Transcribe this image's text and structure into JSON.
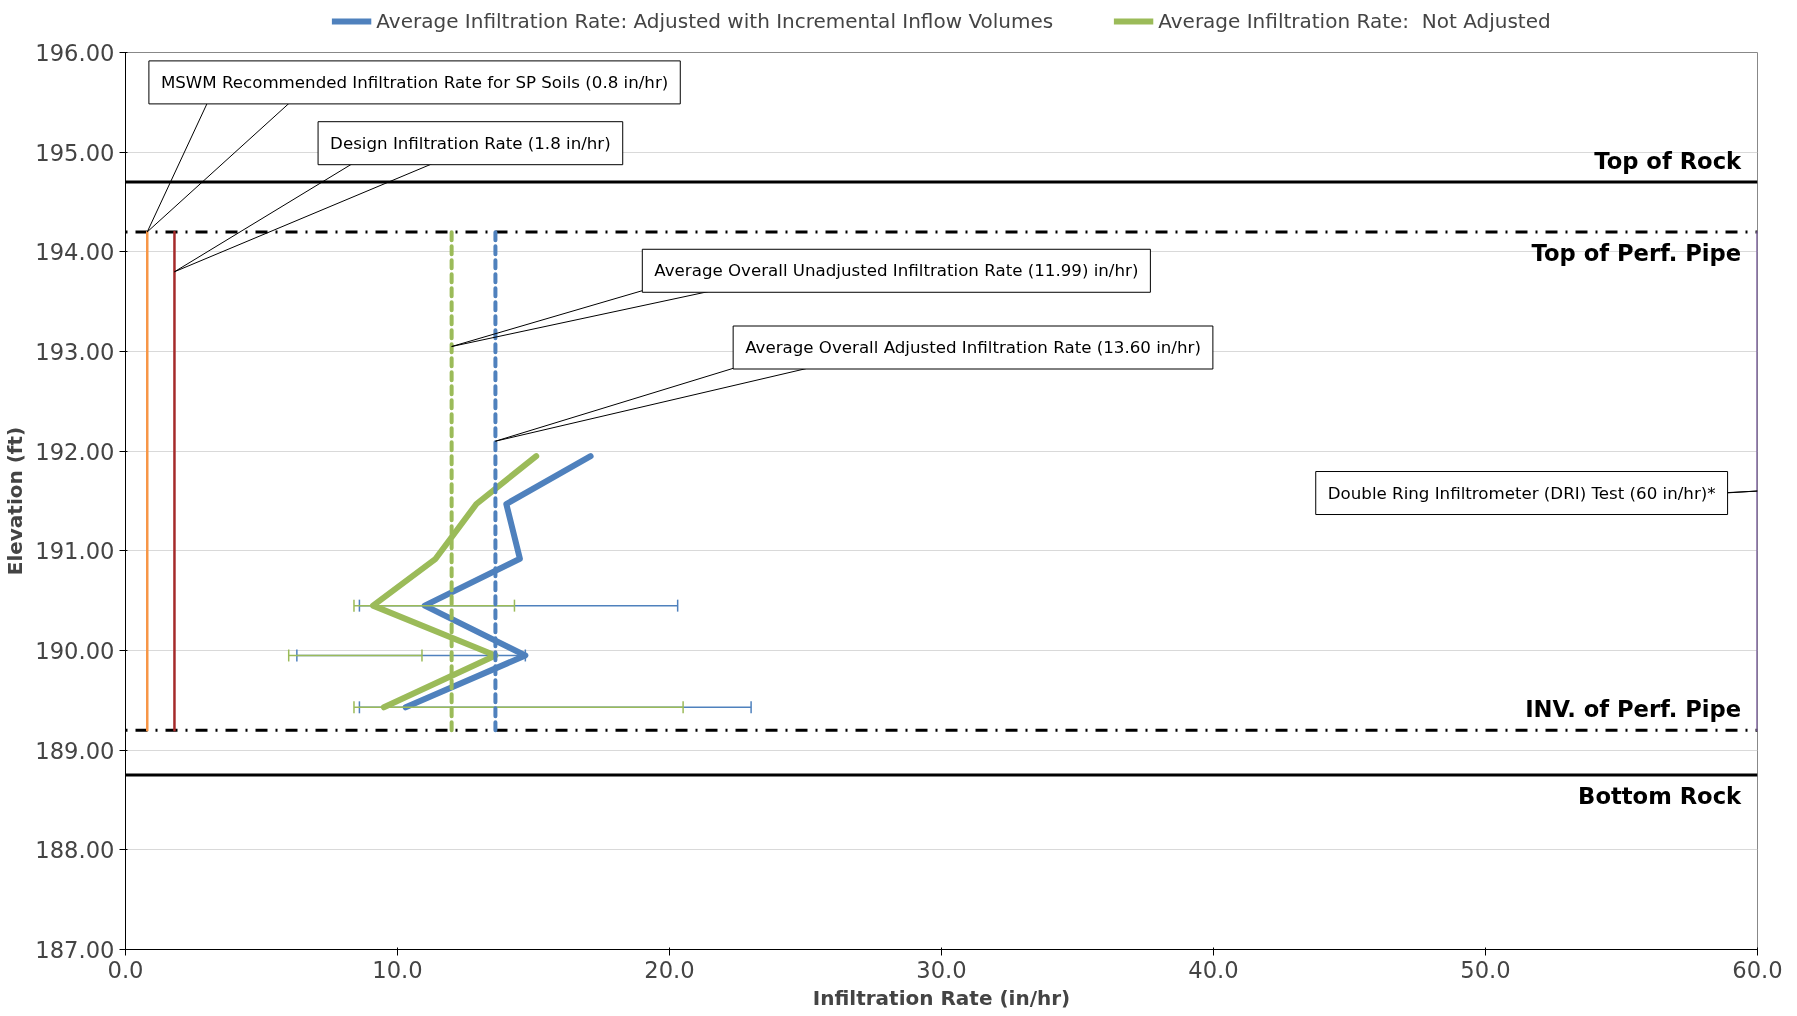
{
  "chart_data": {
    "type": "line",
    "xlabel": "Infiltration Rate (in/hr)",
    "ylabel": "Elevation (ft)",
    "xlim": [
      0,
      60
    ],
    "ylim": [
      187,
      196
    ],
    "xticks": [
      {
        "value": 0,
        "label": "0.0"
      },
      {
        "value": 10,
        "label": "10.0"
      },
      {
        "value": 20,
        "label": "20.0"
      },
      {
        "value": 30,
        "label": "30.0"
      },
      {
        "value": 40,
        "label": "40.0"
      },
      {
        "value": 50,
        "label": "50.0"
      },
      {
        "value": 60,
        "label": "60.0"
      }
    ],
    "yticks": [
      {
        "value": 187,
        "label": "187.00"
      },
      {
        "value": 188,
        "label": "188.00"
      },
      {
        "value": 189,
        "label": "189.00"
      },
      {
        "value": 190,
        "label": "190.00"
      },
      {
        "value": 191,
        "label": "191.00"
      },
      {
        "value": 192,
        "label": "192.00"
      },
      {
        "value": 193,
        "label": "193.00"
      },
      {
        "value": 194,
        "label": "194.00"
      },
      {
        "value": 195,
        "label": "195.00"
      },
      {
        "value": 196,
        "label": "196.00"
      }
    ],
    "grid": "y",
    "legend": "top",
    "marker": "none",
    "series": [
      {
        "name": "Average Infiltration Rate: Adjusted with Incremental Inflow Volumes",
        "color": "#4f81bd",
        "x": [
          17.1,
          14.0,
          14.5,
          11.0,
          14.7,
          10.3
        ],
        "values": [
          191.95,
          191.47,
          190.92,
          190.45,
          189.95,
          189.43
        ],
        "xerrors": [
          null,
          null,
          null,
          [
            8.6,
            20.3
          ],
          [
            6.3,
            14.7
          ],
          [
            8.6,
            23.0
          ]
        ]
      },
      {
        "name": "Average Infiltration Rate:  Not Adjusted",
        "color": "#9bbb59",
        "x": [
          15.1,
          12.9,
          11.4,
          9.1,
          13.6,
          9.5
        ],
        "values": [
          191.95,
          191.47,
          190.92,
          190.45,
          189.95,
          189.43
        ],
        "xerrors": [
          null,
          null,
          null,
          [
            8.4,
            14.3
          ],
          [
            6.0,
            10.9
          ],
          [
            8.4,
            20.5
          ]
        ]
      },
      {
        "color": "#f79646",
        "x": [
          0.8,
          0.8
        ],
        "values": [
          189.2,
          194.2
        ],
        "line_style": "solid"
      },
      {
        "color": "#a52a2a",
        "x": [
          1.8,
          1.8
        ],
        "values": [
          189.2,
          194.2
        ],
        "line_style": "solid"
      },
      {
        "color": "#9bbb59",
        "x": [
          11.99,
          11.99
        ],
        "values": [
          189.2,
          194.2
        ],
        "line_style": "dashed"
      },
      {
        "color": "#4f81bd",
        "x": [
          13.6,
          13.6
        ],
        "values": [
          189.2,
          194.2
        ],
        "line_style": "dashed"
      },
      {
        "color": "#8064a2",
        "x": [
          60,
          60
        ],
        "values": [
          189.2,
          194.2
        ],
        "line_style": "solid"
      }
    ],
    "ref_lines": [
      {
        "axis": "y",
        "value": 194.7,
        "label": "Top of Rock",
        "line_style": "solid"
      },
      {
        "axis": "y",
        "value": 194.2,
        "label": "Top of Perf. Pipe",
        "line_style": "dotted"
      },
      {
        "axis": "y",
        "value": 189.2,
        "label": "INV. of Perf. Pipe",
        "line_style": "dotted"
      },
      {
        "axis": "y",
        "value": 188.75,
        "label": "Bottom Rock",
        "line_style": "solid"
      }
    ],
    "annotations": [
      {
        "text": "MSWM Recommended Infiltration Rate for SP Soils (0.8 in/hr)",
        "x": 0.8,
        "y": 194.2
      },
      {
        "text": "Design Infiltration Rate (1.8 in/hr)",
        "x": 1.8,
        "y": 193.8
      },
      {
        "text": "Average Overall Unadjusted Infiltration Rate (11.99) in/hr)",
        "x": 11.99,
        "y": 193.05
      },
      {
        "text": "Average Overall Adjusted Infiltration Rate (13.60 in/hr)",
        "x": 13.6,
        "y": 192.1
      },
      {
        "text": "Double Ring Infiltrometer (DRI) Test (60 in/hr)*",
        "x": 60,
        "y": 191.6
      }
    ]
  }
}
